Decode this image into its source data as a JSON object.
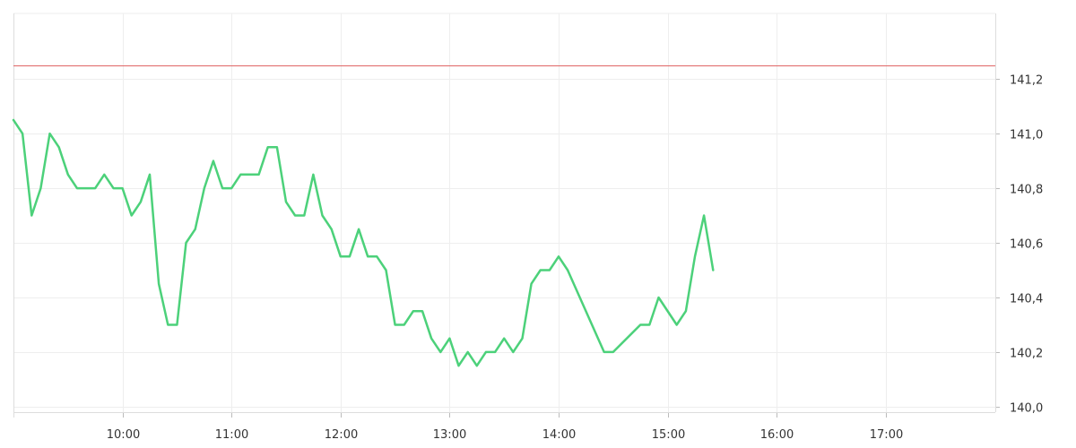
{
  "chart_data": {
    "type": "line",
    "title": "",
    "xlabel": "",
    "ylabel": "",
    "x_domain_hours": [
      9.0,
      18.0
    ],
    "x_ticks": [
      "10:00",
      "11:00",
      "12:00",
      "13:00",
      "14:00",
      "15:00",
      "16:00",
      "17:00"
    ],
    "ylim": [
      139.98,
      141.44
    ],
    "y_ticks": [
      {
        "value": 140.0,
        "label": "140,0"
      },
      {
        "value": 140.2,
        "label": "140,2"
      },
      {
        "value": 140.4,
        "label": "140,4"
      },
      {
        "value": 140.6,
        "label": "140,6"
      },
      {
        "value": 140.8,
        "label": "140,8"
      },
      {
        "value": 141.0,
        "label": "141,0"
      },
      {
        "value": 141.2,
        "label": "141,2"
      }
    ],
    "reference_line": {
      "value": 141.25,
      "color": "#e06666"
    },
    "grid": true,
    "line_color": "#4cd17a",
    "series": [
      {
        "values": [
          [
            "09:00",
            141.05
          ],
          [
            "09:05",
            141.0
          ],
          [
            "09:10",
            140.7
          ],
          [
            "09:15",
            140.8
          ],
          [
            "09:20",
            141.0
          ],
          [
            "09:25",
            140.95
          ],
          [
            "09:30",
            140.85
          ],
          [
            "09:35",
            140.8
          ],
          [
            "09:40",
            140.8
          ],
          [
            "09:45",
            140.8
          ],
          [
            "09:50",
            140.85
          ],
          [
            "09:55",
            140.8
          ],
          [
            "10:00",
            140.8
          ],
          [
            "10:05",
            140.7
          ],
          [
            "10:10",
            140.75
          ],
          [
            "10:15",
            140.85
          ],
          [
            "10:20",
            140.45
          ],
          [
            "10:25",
            140.3
          ],
          [
            "10:30",
            140.3
          ],
          [
            "10:35",
            140.6
          ],
          [
            "10:40",
            140.65
          ],
          [
            "10:45",
            140.8
          ],
          [
            "10:50",
            140.9
          ],
          [
            "10:55",
            140.8
          ],
          [
            "11:00",
            140.8
          ],
          [
            "11:05",
            140.85
          ],
          [
            "11:10",
            140.85
          ],
          [
            "11:15",
            140.85
          ],
          [
            "11:20",
            140.95
          ],
          [
            "11:25",
            140.95
          ],
          [
            "11:30",
            140.75
          ],
          [
            "11:35",
            140.7
          ],
          [
            "11:40",
            140.7
          ],
          [
            "11:45",
            140.85
          ],
          [
            "11:50",
            140.7
          ],
          [
            "11:55",
            140.65
          ],
          [
            "12:00",
            140.55
          ],
          [
            "12:05",
            140.55
          ],
          [
            "12:10",
            140.65
          ],
          [
            "12:15",
            140.55
          ],
          [
            "12:20",
            140.55
          ],
          [
            "12:25",
            140.5
          ],
          [
            "12:30",
            140.3
          ],
          [
            "12:35",
            140.3
          ],
          [
            "12:40",
            140.35
          ],
          [
            "12:45",
            140.35
          ],
          [
            "12:50",
            140.25
          ],
          [
            "12:55",
            140.2
          ],
          [
            "13:00",
            140.25
          ],
          [
            "13:05",
            140.15
          ],
          [
            "13:10",
            140.2
          ],
          [
            "13:15",
            140.15
          ],
          [
            "13:20",
            140.2
          ],
          [
            "13:25",
            140.2
          ],
          [
            "13:30",
            140.25
          ],
          [
            "13:35",
            140.2
          ],
          [
            "13:40",
            140.25
          ],
          [
            "13:45",
            140.45
          ],
          [
            "13:50",
            140.5
          ],
          [
            "13:55",
            140.5
          ],
          [
            "14:00",
            140.55
          ],
          [
            "14:05",
            140.5
          ],
          [
            "14:25",
            140.2
          ],
          [
            "14:30",
            140.2
          ],
          [
            "14:45",
            140.3
          ],
          [
            "14:50",
            140.3
          ],
          [
            "14:55",
            140.4
          ],
          [
            "15:05",
            140.3
          ],
          [
            "15:10",
            140.35
          ],
          [
            "15:15",
            140.55
          ],
          [
            "15:20",
            140.7
          ],
          [
            "15:25",
            140.5
          ]
        ]
      }
    ]
  }
}
